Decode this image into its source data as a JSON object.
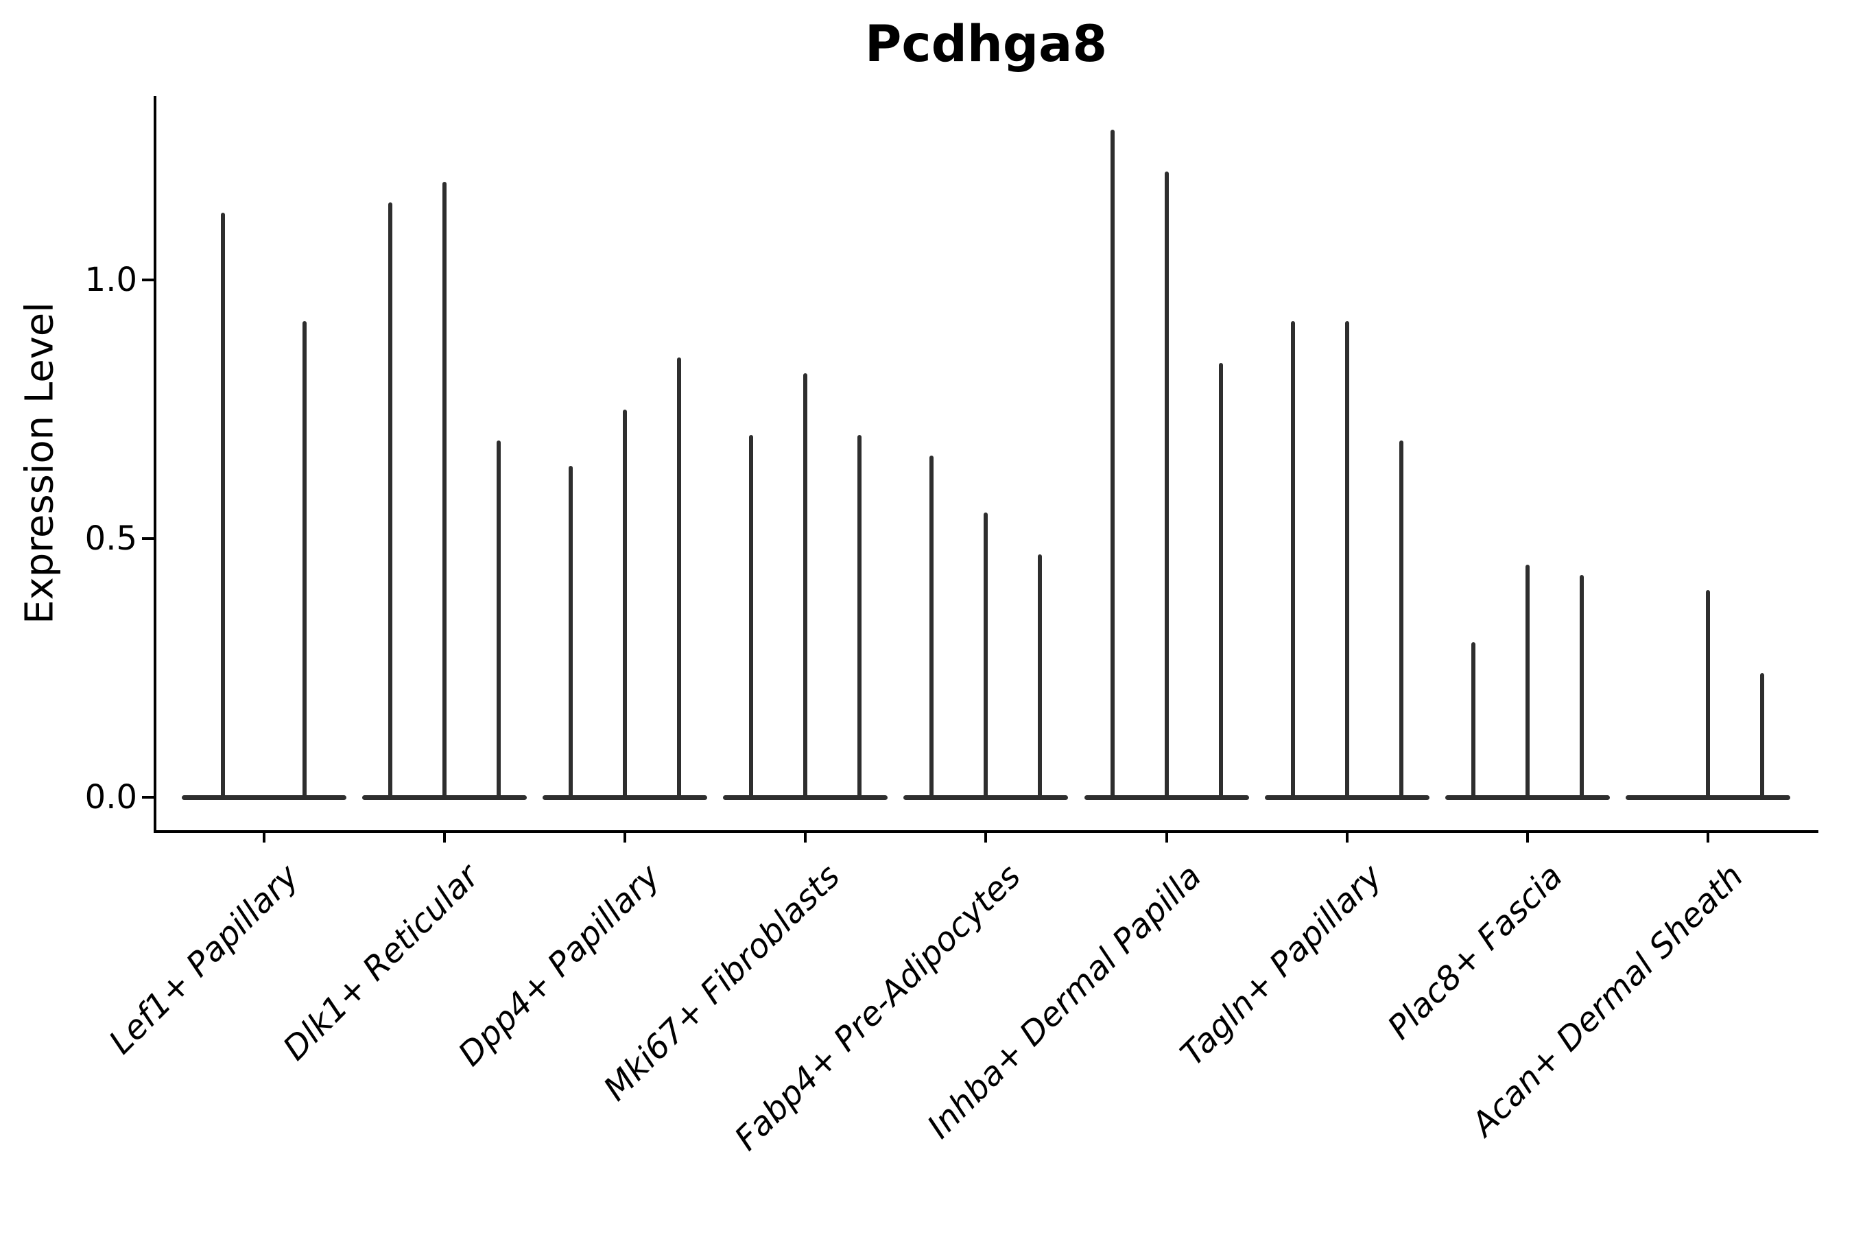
{
  "title": "Pcdhga8",
  "axes": {
    "ylabel": "Expression Level",
    "ytick_labels": [
      "0.0",
      "0.5",
      "1.0"
    ]
  },
  "chart_data": {
    "type": "violin",
    "title": "Pcdhga8",
    "xlabel": "",
    "ylabel": "Expression Level",
    "ylim": [
      -0.065,
      1.355
    ],
    "yticks": [
      0.0,
      0.5,
      1.0
    ],
    "grid": false,
    "legend": false,
    "description": "Violin plot of Pcdhga8 expression; most cells are at 0 so each violin collapses to a flat base at 0 with a thin spike reaching that violin's maximum expression. Groups contain 2-3 violins (sub-samples).",
    "violin_color": "#2e2e2e",
    "categories": [
      "Lef1+ Papillary",
      "Dlk1+ Reticular",
      "Dpp4+ Papillary",
      "Mki67+ Fibroblasts",
      "Fabp4+ Pre-Adipocytes",
      "Inhba+ Dermal Papilla",
      "Tagln+ Papillary",
      "Plac8+ Fascia",
      "Acan+ Dermal Sheath"
    ],
    "groups": [
      {
        "label": "Lef1+ Papillary",
        "spike_max_values": [
          1.13,
          0.92
        ]
      },
      {
        "label": "Dlk1+ Reticular",
        "spike_max_values": [
          1.15,
          1.19,
          0.69
        ]
      },
      {
        "label": "Dpp4+ Papillary",
        "spike_max_values": [
          0.64,
          0.75,
          0.85
        ]
      },
      {
        "label": "Mki67+ Fibroblasts",
        "spike_max_values": [
          0.7,
          0.82,
          0.7
        ]
      },
      {
        "label": "Fabp4+ Pre-Adipocytes",
        "spike_max_values": [
          0.66,
          0.55,
          0.47
        ]
      },
      {
        "label": "Inhba+ Dermal Papilla",
        "spike_max_values": [
          1.29,
          1.21,
          0.84
        ]
      },
      {
        "label": "Tagln+ Papillary",
        "spike_max_values": [
          0.92,
          0.92,
          0.69
        ]
      },
      {
        "label": "Plac8+ Fascia",
        "spike_max_values": [
          0.3,
          0.45,
          0.43
        ]
      },
      {
        "label": "Acan+ Dermal Sheath",
        "spike_max_values": [
          0.0,
          0.4,
          0.24
        ]
      }
    ]
  }
}
